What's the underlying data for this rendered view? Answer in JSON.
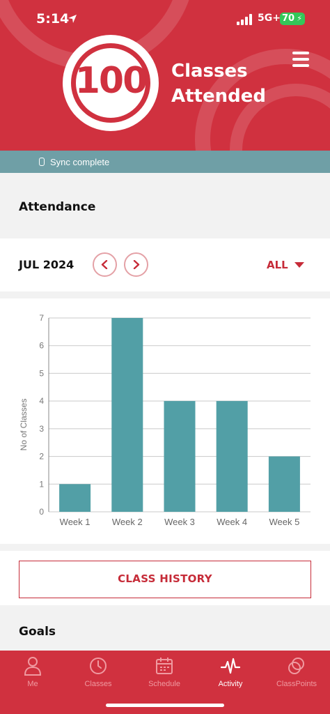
{
  "status_bar": {
    "time": "5:14",
    "network": "5G+",
    "battery": "70"
  },
  "header": {
    "count": "100",
    "label_line1": "Classes",
    "label_line2": "Attended"
  },
  "sync": {
    "text": "Sync complete"
  },
  "attendance": {
    "title": "Attendance",
    "month": "JUL 2024",
    "filter": "ALL"
  },
  "chart_data": {
    "type": "bar",
    "categories": [
      "Week 1",
      "Week 2",
      "Week 3",
      "Week 4",
      "Week 5"
    ],
    "values": [
      1,
      7,
      4,
      4,
      2
    ],
    "ylabel": "No of Classes",
    "xlabel": "",
    "ylim": [
      0,
      7
    ],
    "yticks": [
      0,
      1,
      2,
      3,
      4,
      5,
      6,
      7
    ],
    "grid": true,
    "bar_color": "#529fa6"
  },
  "class_history": {
    "label": "CLASS HISTORY"
  },
  "goals": {
    "title": "Goals"
  },
  "tabbar": {
    "items": [
      {
        "label": "Me",
        "icon": "person-icon"
      },
      {
        "label": "Classes",
        "icon": "clock-icon"
      },
      {
        "label": "Schedule",
        "icon": "calendar-icon"
      },
      {
        "label": "Activity",
        "icon": "activity-icon"
      },
      {
        "label": "ClassPoints",
        "icon": "classpoints-icon"
      }
    ],
    "active": "Activity"
  },
  "colors": {
    "brand_red": "#d0313f",
    "teal": "#6f9fa6",
    "bar": "#529fa6"
  }
}
